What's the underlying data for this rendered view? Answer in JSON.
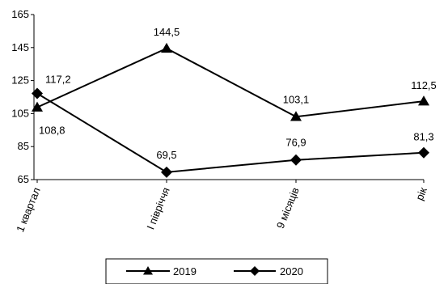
{
  "chart_data": {
    "type": "line",
    "categories": [
      "1 квартал",
      "I півріччя",
      "9 місяців",
      "рік"
    ],
    "ylim": [
      65,
      165
    ],
    "yticks": [
      65,
      85,
      105,
      125,
      145,
      165
    ],
    "ytick_labels": [
      "65",
      "85",
      "105",
      "125",
      "145",
      "165"
    ],
    "grid": false,
    "legend_position": "bottom",
    "series": [
      {
        "name": "2019",
        "marker": "triangle",
        "values": [
          108.8,
          144.5,
          103.1,
          112.5
        ],
        "labels": [
          "108,8",
          "144,5",
          "103,1",
          "112,5"
        ]
      },
      {
        "name": "2020",
        "marker": "diamond",
        "values": [
          117.2,
          69.5,
          76.9,
          81.3
        ],
        "labels": [
          "117,2",
          "69,5",
          "76,9",
          "81,3"
        ]
      }
    ]
  }
}
